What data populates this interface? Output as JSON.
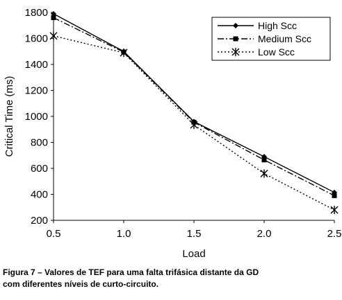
{
  "chart_data": {
    "type": "line",
    "xlabel": "Load",
    "ylabel": "Critical Time (ms)",
    "x": [
      0.5,
      1.0,
      1.5,
      2.0,
      2.5
    ],
    "x_tick_labels": [
      "0.5",
      "1.0",
      "1.5",
      "2.0",
      "2.5"
    ],
    "y_tick_labels": [
      "200",
      "400",
      "600",
      "800",
      "1000",
      "1200",
      "1400",
      "1600",
      "1800"
    ],
    "xlim": [
      0.5,
      2.5
    ],
    "ylim": [
      200,
      1800
    ],
    "grid": false,
    "legend_position": "top-right",
    "series": [
      {
        "name": "High Scc",
        "values": [
          1790,
          1500,
          960,
          690,
          415
        ],
        "line": "solid",
        "marker": "diamond"
      },
      {
        "name": "Medium Scc",
        "values": [
          1760,
          1495,
          955,
          665,
          390
        ],
        "line": "dash-dot",
        "marker": "square"
      },
      {
        "name": "Low  Scc",
        "values": [
          1620,
          1490,
          935,
          560,
          280
        ],
        "line": "dotted",
        "marker": "asterisk"
      }
    ]
  },
  "caption": {
    "line1": "Figura 7 – Valores de TEF para uma falta trifásica distante da GD",
    "line2": "com diferentes níveis de curto-circuito."
  }
}
